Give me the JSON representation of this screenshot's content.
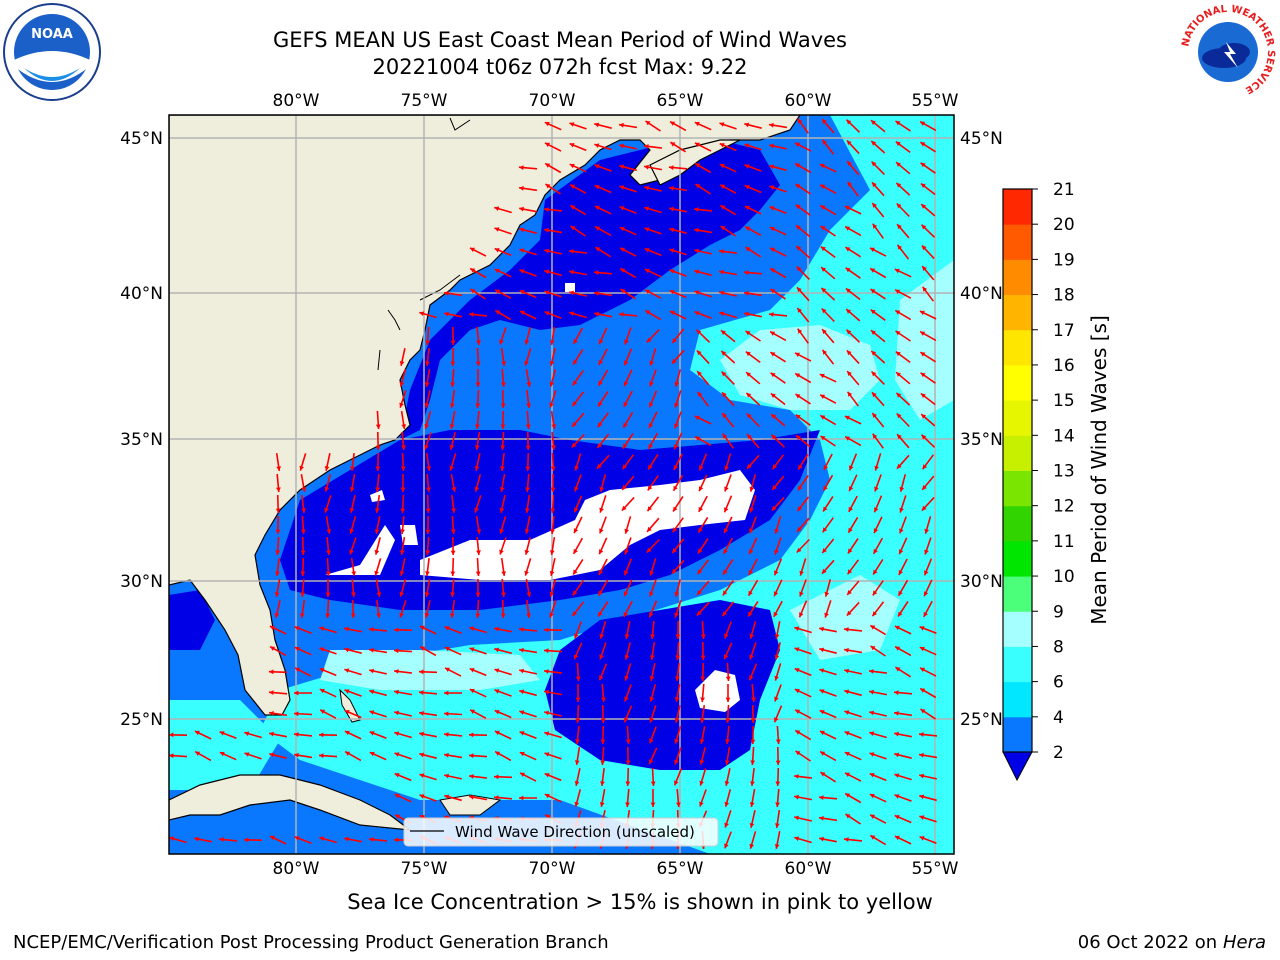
{
  "title": {
    "line1": "GEFS MEAN US East Coast Mean Period of Wind Waves",
    "line2": "20221004 t06z 072h fcst   Max: 9.22"
  },
  "map": {
    "lon_labels": [
      "80°W",
      "75°W",
      "70°W",
      "65°W",
      "60°W",
      "55°W"
    ],
    "lat_labels": [
      "45°N",
      "40°N",
      "35°N",
      "30°N",
      "25°N"
    ],
    "legend_label": "Wind Wave Direction (unscaled)",
    "colors": {
      "land": "#efeedc",
      "water_base": "#0a77ff",
      "dark": "#0000e6",
      "cyan_light": "#39ffff",
      "cyan_pale": "#a6ffff",
      "arrow": "#ff0000",
      "grid": "#b4b4b4"
    }
  },
  "colorbar": {
    "label": "Mean Period of Wind Waves [s]",
    "ticks": [
      "2",
      "4",
      "6",
      "8",
      "9",
      "10",
      "11",
      "12",
      "13",
      "14",
      "15",
      "16",
      "17",
      "18",
      "19",
      "20",
      "21"
    ],
    "colors": [
      "#0a77ff",
      "#00e7ff",
      "#39ffff",
      "#a6ffff",
      "#4cff7a",
      "#00e600",
      "#32d400",
      "#7ae600",
      "#c6f000",
      "#e6f500",
      "#ffff00",
      "#ffe600",
      "#ffb400",
      "#ff8c00",
      "#ff5a00",
      "#ff2800",
      "#ff0000"
    ],
    "extend_color": "#0000e6"
  },
  "subtitle": "Sea Ice Concentration > 15% is shown in pink to yellow",
  "footer": {
    "left": "NCEP/EMC/Verification Post Processing Product Generation Branch",
    "right_date": "06 Oct 2022 on ",
    "right_machine": "Hera"
  },
  "logos": {
    "noaa": "NOAA",
    "nws": "NATIONAL WEATHER SERVICE"
  }
}
